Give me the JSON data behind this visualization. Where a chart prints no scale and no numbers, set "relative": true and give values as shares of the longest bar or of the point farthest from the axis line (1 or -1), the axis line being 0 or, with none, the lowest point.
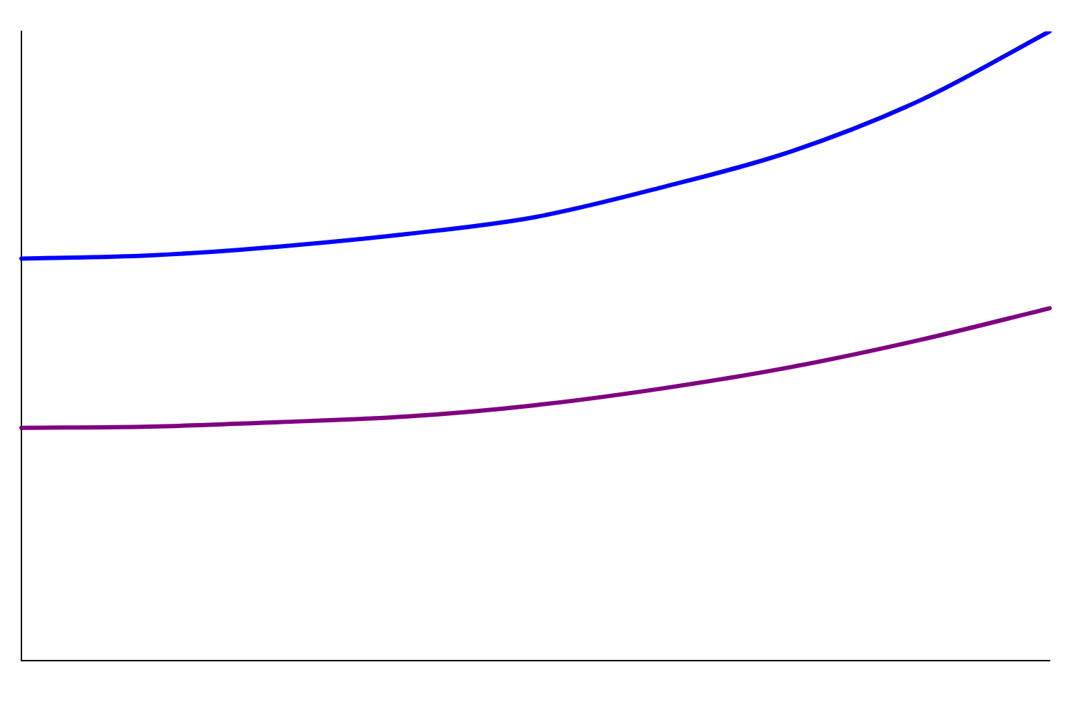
{
  "chart_data": {
    "type": "line",
    "relative": true,
    "categories": [
      null,
      null,
      null,
      null,
      null,
      null,
      null,
      null,
      null
    ],
    "series": [
      {
        "color": "#0000ff",
        "values": [
          0.639,
          0.644,
          0.658,
          0.678,
          0.705,
          0.753,
          0.81,
          0.891,
          1
        ]
      },
      {
        "color": "#800080",
        "values": [
          0.37,
          0.372,
          0.379,
          0.388,
          0.406,
          0.433,
          0.467,
          0.51,
          0.56
        ]
      }
    ]
  }
}
